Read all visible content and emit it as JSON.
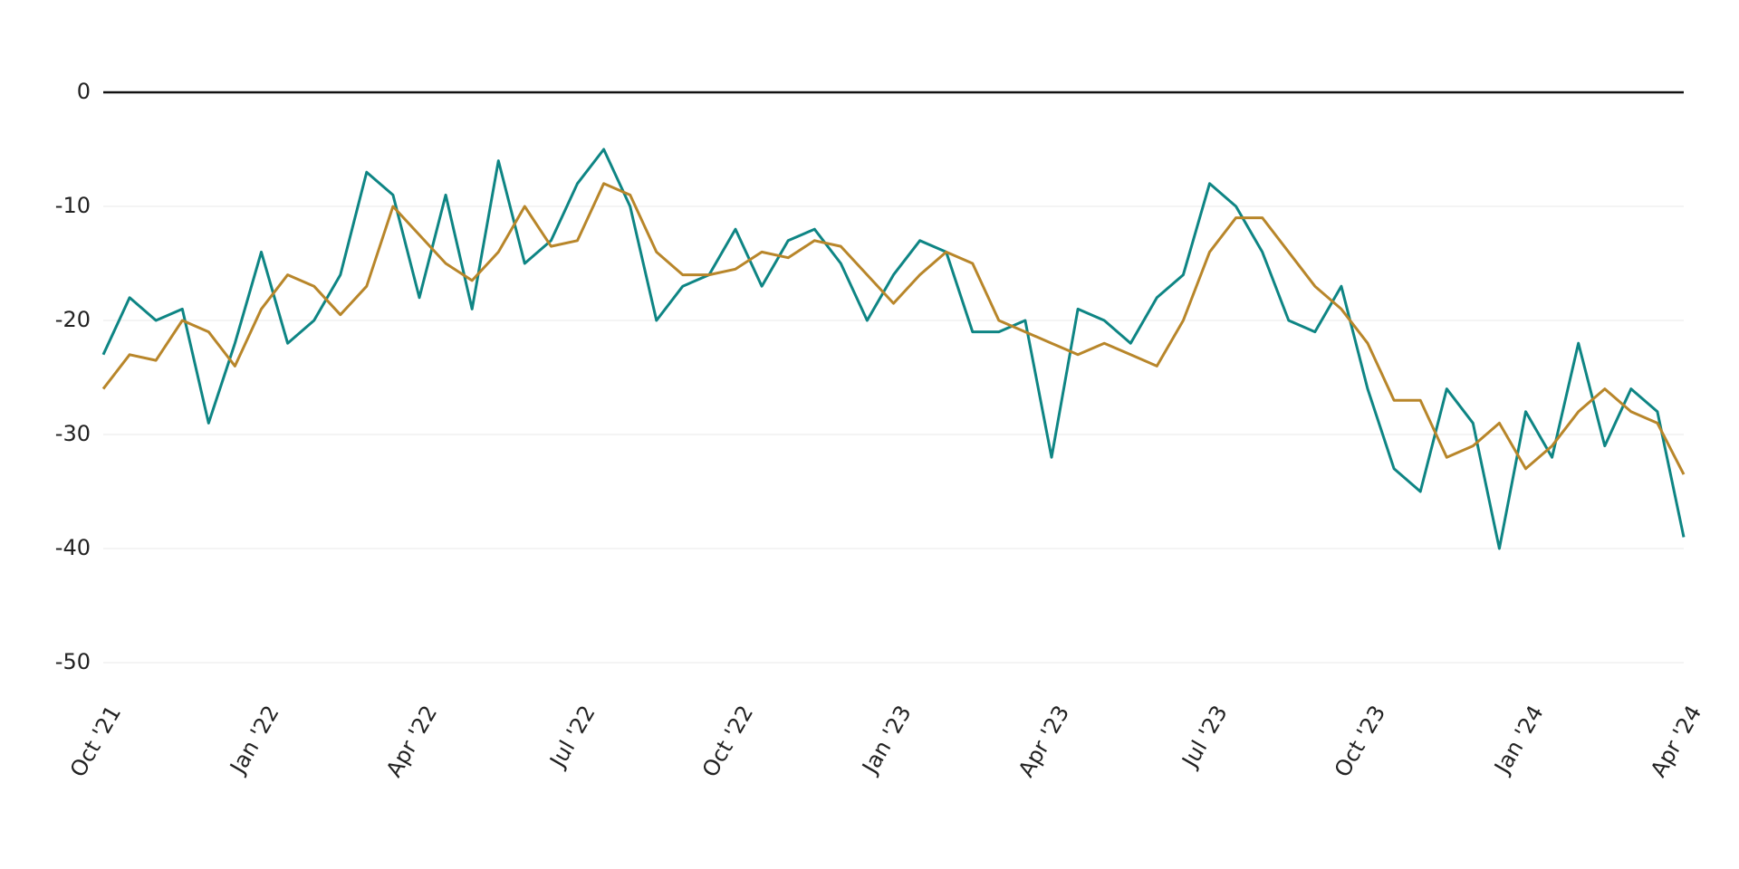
{
  "chart_data": {
    "type": "line",
    "categories": [
      "Oct '21",
      null,
      null,
      null,
      null,
      null,
      "Jan '22",
      null,
      null,
      null,
      null,
      null,
      "Apr '22",
      null,
      null,
      null,
      null,
      null,
      "Jul '22",
      null,
      null,
      null,
      null,
      null,
      "Oct '22",
      null,
      null,
      null,
      null,
      null,
      "Jan '23",
      null,
      null,
      null,
      null,
      null,
      "Apr '23",
      null,
      null,
      null,
      null,
      null,
      "Jul '23",
      null,
      null,
      null,
      null,
      null,
      "Oct '23",
      null,
      null,
      null,
      null,
      null,
      "Jan '24",
      null,
      null,
      null,
      null,
      null,
      "Apr '24"
    ],
    "series": [
      {
        "color": "#0e8584",
        "values": [
          -23,
          -18,
          -20,
          -19,
          -29,
          -22,
          -14,
          -22,
          -20,
          -16,
          -7,
          -9,
          -18,
          -9,
          -19,
          -6,
          -15,
          -13,
          -8,
          -5,
          -10,
          -20,
          -17,
          -16,
          -12,
          -17,
          -13,
          -12,
          -15,
          -20,
          -16,
          -13,
          -14,
          -21,
          -21,
          -20,
          -32,
          -19,
          -20,
          -22,
          -18,
          -16,
          -8,
          -10,
          -14,
          -20,
          -21,
          -17,
          -26,
          -33,
          -35,
          -26,
          -29,
          -40,
          -28,
          -32,
          -22,
          -31,
          -26,
          -28,
          -39
        ]
      },
      {
        "color": "#b8862a",
        "values": [
          -26,
          -23,
          -23.5,
          -20,
          -21,
          -24,
          -19,
          -16,
          -17,
          -19.5,
          -17,
          -10,
          -12.5,
          -15,
          -16.5,
          -14,
          -10,
          -13.5,
          -13,
          -8,
          -9,
          -14,
          -16,
          -16,
          -15.5,
          -14,
          -14.5,
          -13,
          -13.5,
          -16,
          -18.5,
          -16,
          -14,
          -15,
          -20,
          -21,
          -22,
          -23,
          -22,
          -23,
          -24,
          -20,
          -14,
          -11,
          -11,
          -14,
          -17,
          -19,
          -22,
          -27,
          -27,
          -32,
          -31,
          -29,
          -33,
          -31,
          -28,
          -26,
          -28,
          -29,
          -33.5
        ]
      }
    ],
    "ylim": [
      -50,
      0
    ],
    "yticks": [
      0,
      -10,
      -20,
      -30,
      -40,
      -50
    ],
    "grid": true
  }
}
